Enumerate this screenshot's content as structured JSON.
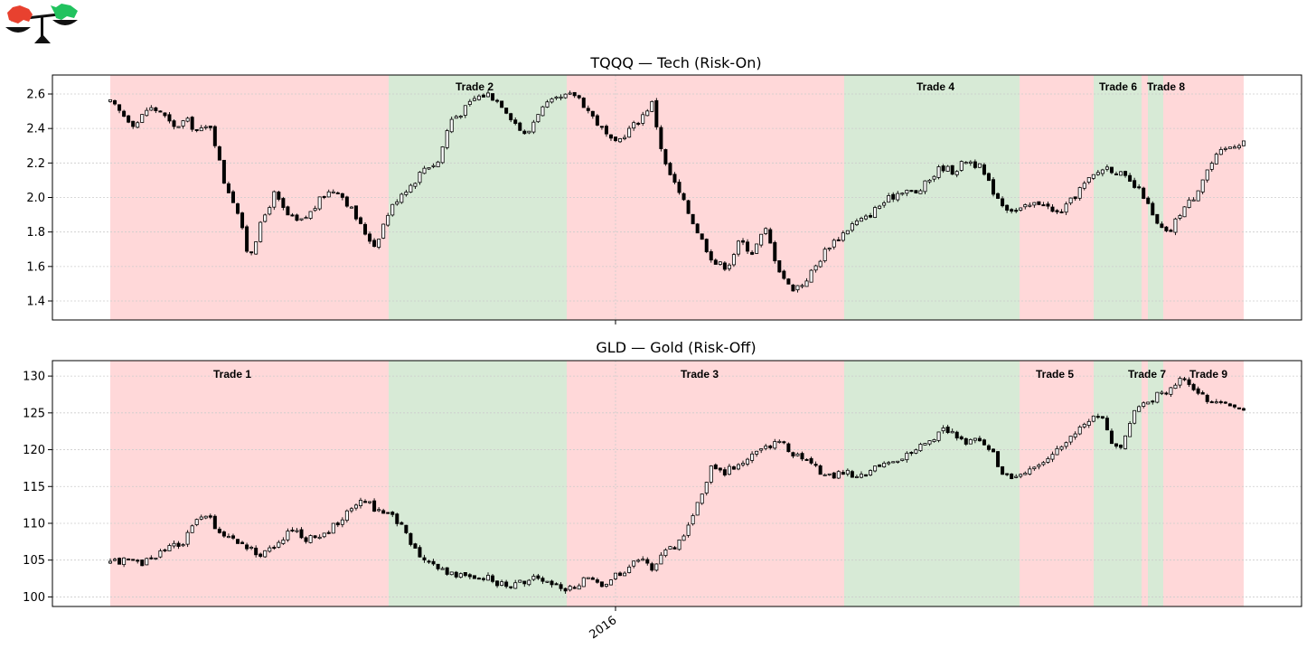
{
  "logo": {
    "icon": "bear-bull-scale-icon",
    "bear_color": "#e8412f",
    "bull_color": "#21c25e"
  },
  "colors": {
    "risk_off_band": "#ffd8d9",
    "risk_on_band": "#d7ead6",
    "candle": "#000000",
    "grid": "#cccccc"
  },
  "chart_data": [
    {
      "type": "candlestick",
      "title": "TQQQ — Tech (Risk-On)",
      "xlabel": "",
      "ylabel": "",
      "ylim": [
        1.29,
        2.71
      ],
      "yticks": [
        "1.4",
        "1.6",
        "1.8",
        "2.0",
        "2.2",
        "2.4",
        "2.6"
      ],
      "x_tick_label": "",
      "grid": true,
      "trade_labels": [
        "Trade 2",
        "Trade 4",
        "Trade 6",
        "Trade 8"
      ],
      "series_close": [
        2.55,
        2.48,
        2.42,
        2.52,
        2.5,
        2.4,
        2.45,
        2.38,
        2.42,
        2.1,
        1.95,
        1.65,
        1.85,
        2.02,
        1.9,
        1.85,
        1.92,
        2.02,
        2.05,
        1.95,
        1.82,
        1.72,
        1.9,
        2.02,
        2.08,
        2.18,
        2.2,
        2.45,
        2.5,
        2.58,
        2.6,
        2.55,
        2.45,
        2.35,
        2.5,
        2.55,
        2.58,
        2.6,
        2.5,
        2.4,
        2.3,
        2.38,
        2.45,
        2.55,
        2.2,
        2.05,
        1.9,
        1.75,
        1.62,
        1.6,
        1.75,
        1.68,
        1.82,
        1.6,
        1.47,
        1.5,
        1.6,
        1.72,
        1.78,
        1.85,
        1.88,
        1.95,
        2.0,
        2.05,
        2.02,
        2.1,
        2.18,
        2.15,
        2.22,
        2.18,
        2.05,
        1.95,
        1.92,
        1.95,
        1.98,
        1.9,
        1.95,
        2.05,
        2.12,
        2.18,
        2.15,
        2.08,
        2.02,
        1.85,
        1.78,
        1.92,
        2.0,
        2.15,
        2.25,
        2.3,
        2.33
      ]
    },
    {
      "type": "candlestick",
      "title": "GLD — Gold (Risk-Off)",
      "xlabel": "",
      "ylabel": "",
      "ylim": [
        98.7,
        132.1
      ],
      "yticks": [
        "100",
        "105",
        "110",
        "115",
        "120",
        "125",
        "130"
      ],
      "x_tick_label": "2016",
      "grid": true,
      "trade_labels": [
        "Trade 1",
        "Trade 3",
        "Trade 5",
        "Trade 7",
        "Trade 9"
      ],
      "series_close": [
        104.5,
        105,
        104.5,
        104.8,
        106,
        107,
        107.2,
        110,
        111,
        109,
        108,
        107,
        106,
        106,
        107.5,
        109,
        108,
        108,
        109,
        110,
        112,
        113.2,
        112,
        111.5,
        110,
        107,
        105,
        104,
        103.5,
        103,
        102.5,
        102.8,
        102,
        101.5,
        101.8,
        102.5,
        102,
        101.5,
        101.2,
        102,
        102.5,
        101.5,
        103,
        104,
        105,
        104,
        106,
        107,
        110,
        114,
        118,
        117,
        118,
        119,
        120,
        121,
        120.5,
        119,
        118,
        117,
        116.5,
        117,
        116,
        117,
        118,
        118.5,
        119,
        120.5,
        121,
        123,
        122,
        121,
        121.5,
        120,
        117,
        116,
        116.5,
        118,
        119,
        121,
        122.5,
        124,
        125,
        121,
        120.5,
        126,
        126.5,
        127.5,
        128.5,
        129.5,
        128,
        127,
        126.5,
        126,
        125.5
      ]
    }
  ]
}
